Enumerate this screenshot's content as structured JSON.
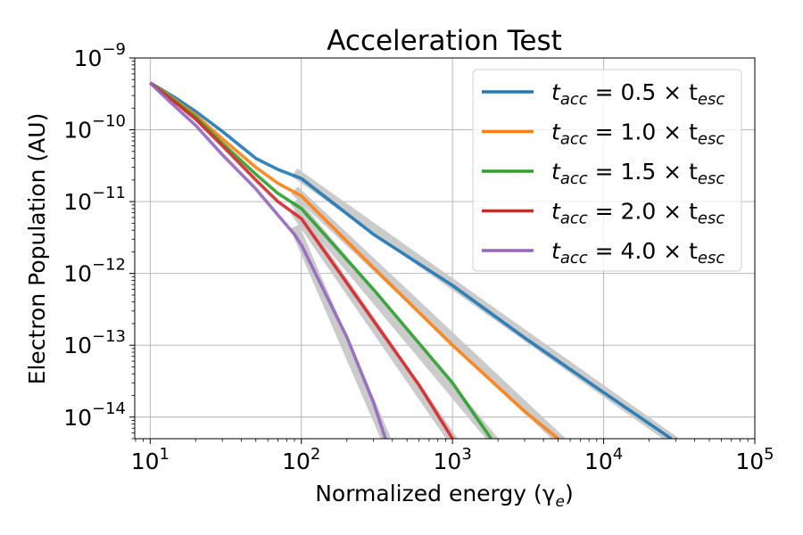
{
  "chart_data": {
    "type": "line",
    "title": "Acceleration Test",
    "xlabel": "Normalized energy (γ",
    "xlabel_sub": "e",
    "xlabel_tail": ")",
    "ylabel": "Electron Population (AU)",
    "x_scale": "log",
    "y_scale": "log",
    "xlim": [
      7.9,
      100000
    ],
    "ylim": [
      5e-15,
      1e-09
    ],
    "grid": true,
    "legend_position": "top-right",
    "x_ticks": [
      {
        "value": 10,
        "base": "10",
        "exp": "1"
      },
      {
        "value": 100,
        "base": "10",
        "exp": "2"
      },
      {
        "value": 1000,
        "base": "10",
        "exp": "3"
      },
      {
        "value": 10000,
        "base": "10",
        "exp": "4"
      },
      {
        "value": 100000,
        "base": "10",
        "exp": "5"
      }
    ],
    "y_ticks": [
      {
        "value": 1e-14,
        "base": "10",
        "exp": "−14"
      },
      {
        "value": 1e-13,
        "base": "10",
        "exp": "−13"
      },
      {
        "value": 1e-12,
        "base": "10",
        "exp": "−12"
      },
      {
        "value": 1e-11,
        "base": "10",
        "exp": "−11"
      },
      {
        "value": 1e-10,
        "base": "10",
        "exp": "−10"
      },
      {
        "value": 1e-09,
        "base": "10",
        "exp": "−9"
      }
    ],
    "fit_color": "#c8c8c8",
    "series": [
      {
        "name": "t_acc = 0.5 × t_esc",
        "label_main": "t",
        "label_sub1": "acc",
        "label_mid": " = 0.5 × t",
        "label_sub2": "esc",
        "color": "#1f77b4",
        "x": [
          10,
          12,
          15,
          20,
          30,
          50,
          70,
          100,
          300,
          1000,
          3000,
          10000,
          28000
        ],
        "y": [
          4.5e-10,
          3.6e-10,
          2.7e-10,
          1.8e-10,
          9.5e-11,
          4e-11,
          2.8e-11,
          2.1e-11,
          3.5e-12,
          6.8e-13,
          1.27e-13,
          2.2e-14,
          5e-15
        ],
        "fit_x": [
          90,
          30000
        ],
        "fit_y": [
          2.55e-11,
          4.5e-15
        ]
      },
      {
        "name": "t_acc = 1.0 × t_esc",
        "label_main": "t",
        "label_sub1": "acc",
        "label_mid": " = 1.0 × t",
        "label_sub2": "esc",
        "color": "#ff7f0e",
        "x": [
          10,
          12,
          15,
          20,
          30,
          50,
          70,
          100,
          300,
          1000,
          3000,
          5000
        ],
        "y": [
          4.5e-10,
          3.5e-10,
          2.5e-10,
          1.6e-10,
          7.5e-11,
          3e-11,
          1.8e-11,
          1.2e-11,
          1.2e-12,
          1e-13,
          1.2e-14,
          5e-15
        ],
        "fit_x": [
          90,
          5500
        ],
        "fit_y": [
          1.45e-11,
          4.2e-15
        ]
      },
      {
        "name": "t_acc = 1.5 × t_esc",
        "label_main": "t",
        "label_sub1": "acc",
        "label_mid": " = 1.5 × t",
        "label_sub2": "esc",
        "color": "#2ca02c",
        "x": [
          10,
          12,
          15,
          20,
          30,
          50,
          70,
          100,
          300,
          1000,
          1800
        ],
        "y": [
          4.5e-10,
          3.4e-10,
          2.4e-10,
          1.5e-10,
          6.5e-11,
          2.4e-11,
          1.3e-11,
          8e-12,
          6e-13,
          3e-14,
          5e-15
        ],
        "fit_x": [
          90,
          2000
        ],
        "fit_y": [
          1e-11,
          4e-15
        ]
      },
      {
        "name": "t_acc = 2.0 × t_esc",
        "label_main": "t",
        "label_sub1": "acc",
        "label_mid": " = 2.0 × t",
        "label_sub2": "esc",
        "color": "#d62728",
        "x": [
          10,
          12,
          15,
          20,
          30,
          50,
          70,
          100,
          300,
          600,
          1000
        ],
        "y": [
          4.5e-10,
          3.3e-10,
          2.3e-10,
          1.4e-10,
          6e-11,
          2e-11,
          1e-11,
          5.8e-12,
          2.2e-13,
          2.8e-14,
          5e-15
        ],
        "fit_x": [
          90,
          1050
        ],
        "fit_y": [
          7.5e-12,
          4.2e-15
        ]
      },
      {
        "name": "t_acc = 4.0 × t_esc",
        "label_main": "t",
        "label_sub1": "acc",
        "label_mid": " = 4.0 × t",
        "label_sub2": "esc",
        "color": "#9467bd",
        "x": [
          10,
          12,
          15,
          20,
          30,
          50,
          70,
          90,
          100,
          200,
          300,
          360
        ],
        "y": [
          4.5e-10,
          3.1e-10,
          2e-10,
          1.15e-10,
          4.5e-11,
          1.5e-11,
          6.5e-12,
          3.5e-12,
          2.5e-12,
          1.3e-13,
          1.6e-14,
          5e-15
        ],
        "fit_x": [
          90,
          380
        ],
        "fit_y": [
          4.5e-12,
          4e-15
        ]
      }
    ]
  }
}
